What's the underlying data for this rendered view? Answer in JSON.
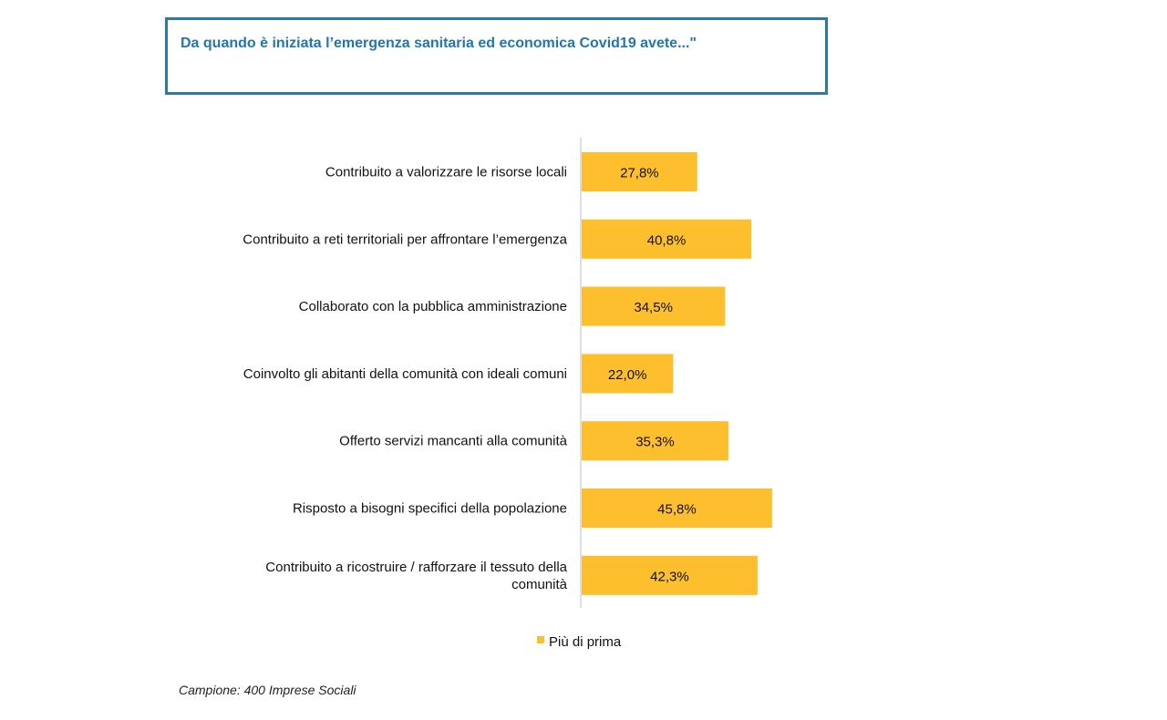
{
  "header": {
    "title": "Da quando è iniziata l’emergenza sanitaria ed economica Covid19 avete...\""
  },
  "footnote": "Campione: 400 Imprese Sociali",
  "chart_data": {
    "type": "bar",
    "orientation": "horizontal",
    "categories": [
      [
        "Contribuito a valorizzare le risorse locali"
      ],
      [
        "Contribuito a reti territoriali per affrontare l’emergenza"
      ],
      [
        "Collaborato con la pubblica amministrazione"
      ],
      [
        "Coinvolto gli abitanti della comunità con ideali comuni"
      ],
      [
        "Offerto servizi mancanti alla comunità"
      ],
      [
        "Risposto a bisogni specifici della popolazione"
      ],
      [
        "Contribuito a ricostruire / rafforzare il tessuto della",
        "comunità"
      ]
    ],
    "series": [
      {
        "name": "Più di prima",
        "color": "#FDBF2D",
        "values": [
          27.8,
          40.8,
          34.5,
          22.0,
          35.3,
          45.8,
          42.3
        ],
        "labels": [
          "27,8%",
          "40,8%",
          "34,5%",
          "22,0%",
          "35,3%",
          "45,8%",
          "42,3%"
        ]
      }
    ],
    "xlim": [
      0,
      100
    ],
    "grid": false,
    "legend": "bottom-center"
  }
}
